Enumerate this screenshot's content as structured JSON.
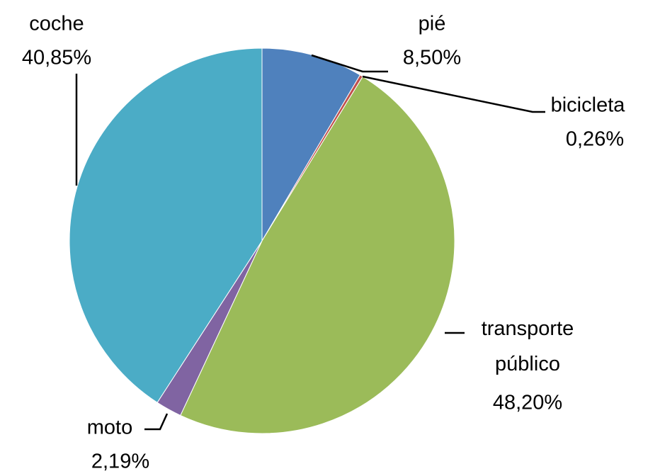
{
  "chart_data": {
    "type": "pie",
    "categories": [
      "pié",
      "bicicleta",
      "transporte público",
      "moto",
      "coche"
    ],
    "values": [
      8.5,
      0.26,
      48.2,
      2.19,
      40.85
    ],
    "value_labels": [
      "8,50%",
      "0,26%",
      "48,20%",
      "2,19%",
      "40,85%"
    ],
    "colors": [
      "#4f81bd",
      "#c0504d",
      "#9bbb59",
      "#8064a2",
      "#4bacc6"
    ]
  }
}
